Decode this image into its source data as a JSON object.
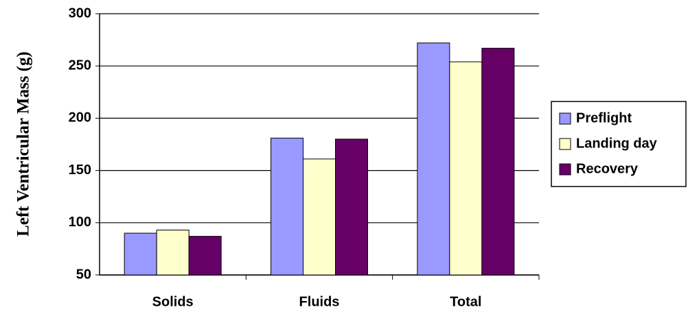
{
  "chart_data": {
    "type": "bar",
    "y_label": "Left Ventricular Mass (g)",
    "categories": [
      "Solids",
      "Fluids",
      "Total"
    ],
    "series": [
      {
        "name": "Preflight",
        "color": "#9999ff",
        "values": [
          90,
          181,
          272
        ]
      },
      {
        "name": "Landing day",
        "color": "#ffffcc",
        "values": [
          93,
          161,
          254
        ]
      },
      {
        "name": "Recovery",
        "color": "#660066",
        "values": [
          87,
          180,
          267
        ]
      }
    ],
    "ylim": [
      50,
      300
    ],
    "yticks": [
      50,
      100,
      150,
      200,
      250,
      300
    ],
    "grid": true,
    "legend": "right"
  }
}
